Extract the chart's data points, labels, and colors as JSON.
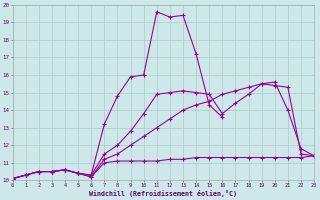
{
  "xlabel": "Windchill (Refroidissement éolien,°C)",
  "bg_color": "#cce8e8",
  "line_color": "#990099",
  "grid_color": "#aacccc",
  "xlim": [
    0,
    23
  ],
  "ylim": [
    10,
    20
  ],
  "xticks": [
    0,
    1,
    2,
    3,
    4,
    5,
    6,
    7,
    8,
    9,
    10,
    11,
    12,
    13,
    14,
    15,
    16,
    17,
    18,
    19,
    20,
    21,
    22,
    23
  ],
  "yticks": [
    10,
    11,
    12,
    13,
    14,
    15,
    16,
    17,
    18,
    19,
    20
  ],
  "series": [
    {
      "x": [
        0,
        1,
        2,
        3,
        4,
        5,
        6,
        7,
        8,
        9,
        10,
        11,
        12,
        13,
        14,
        15,
        16,
        17,
        18,
        19,
        20,
        21,
        22,
        23
      ],
      "y": [
        10.1,
        10.3,
        10.5,
        10.5,
        10.6,
        10.4,
        10.2,
        11.0,
        11.1,
        11.1,
        11.1,
        11.1,
        11.2,
        11.2,
        11.3,
        11.3,
        11.3,
        11.3,
        11.3,
        11.3,
        11.3,
        11.3,
        11.3,
        11.4
      ]
    },
    {
      "x": [
        0,
        1,
        2,
        3,
        4,
        5,
        6,
        7,
        8,
        9,
        10,
        11,
        12,
        13,
        14,
        15,
        16,
        17,
        18,
        19,
        20,
        21,
        22,
        23
      ],
      "y": [
        10.1,
        10.3,
        10.5,
        10.5,
        10.6,
        10.4,
        10.2,
        11.2,
        11.5,
        12.0,
        12.5,
        13.0,
        13.5,
        14.0,
        14.3,
        14.5,
        14.9,
        15.1,
        15.3,
        15.5,
        15.4,
        15.3,
        11.5,
        11.4
      ]
    },
    {
      "x": [
        0,
        1,
        2,
        3,
        4,
        5,
        6,
        7,
        8,
        9,
        10,
        11,
        12,
        13,
        14,
        15,
        16,
        17,
        18,
        19,
        20,
        21,
        22,
        23
      ],
      "y": [
        10.1,
        10.3,
        10.5,
        10.5,
        10.6,
        10.4,
        10.3,
        11.5,
        12.0,
        12.8,
        13.8,
        14.9,
        15.0,
        15.1,
        15.0,
        14.9,
        13.8,
        14.4,
        14.9,
        15.5,
        15.6,
        14.0,
        11.8,
        11.4
      ]
    },
    {
      "x": [
        0,
        1,
        2,
        3,
        4,
        5,
        6,
        7,
        8,
        9,
        10,
        11,
        12,
        13,
        14,
        15,
        16
      ],
      "y": [
        10.1,
        10.3,
        10.5,
        10.5,
        10.6,
        10.4,
        10.3,
        13.2,
        14.8,
        15.9,
        16.0,
        19.6,
        19.3,
        19.4,
        17.2,
        14.3,
        13.6
      ]
    }
  ]
}
